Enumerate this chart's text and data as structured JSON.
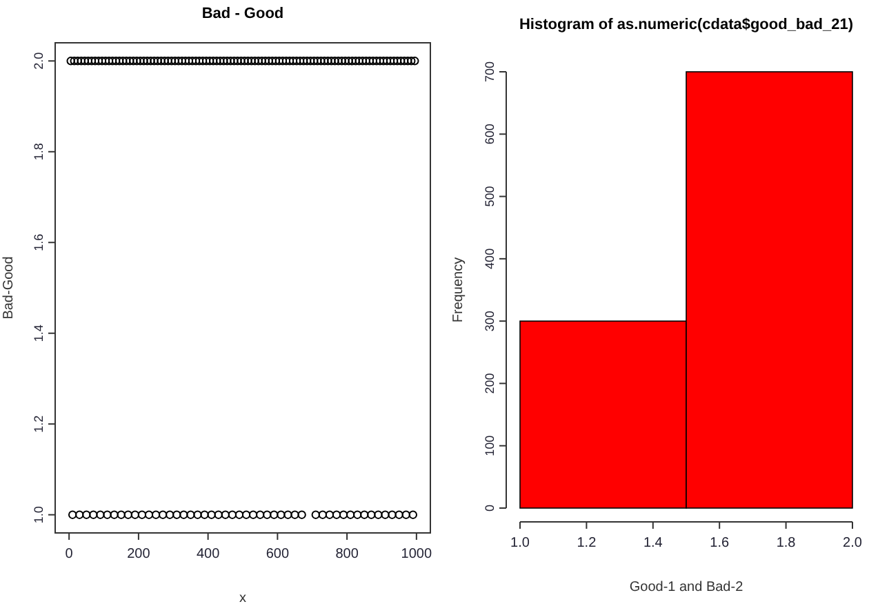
{
  "chart_data": [
    {
      "type": "scatter",
      "title": "Bad - Good",
      "xlabel": "x",
      "ylabel": "Bad-Good",
      "xlim": [
        -40,
        1040
      ],
      "ylim": [
        0.96,
        2.04
      ],
      "xticks": [
        0,
        200,
        400,
        600,
        800,
        1000
      ],
      "yticks": [
        {
          "value": 1,
          "label": "1.0"
        },
        1.2,
        1.4,
        1.6,
        1.8,
        {
          "value": 2,
          "label": "2.0"
        }
      ],
      "marker": "circle",
      "grid": false,
      "series": [
        {
          "color": "#000000",
          "x": [
            5,
            15,
            25,
            35,
            45,
            55,
            65,
            75,
            85,
            95,
            105,
            115,
            125,
            135,
            145,
            155,
            165,
            175,
            185,
            195,
            205,
            215,
            225,
            235,
            245,
            255,
            265,
            275,
            285,
            295,
            305,
            315,
            325,
            335,
            345,
            355,
            365,
            375,
            385,
            395,
            405,
            415,
            425,
            435,
            445,
            455,
            465,
            475,
            485,
            495,
            505,
            515,
            525,
            535,
            545,
            555,
            565,
            575,
            585,
            595,
            605,
            615,
            625,
            635,
            645,
            655,
            665,
            675,
            685,
            695,
            705,
            715,
            725,
            735,
            745,
            755,
            765,
            775,
            785,
            795,
            805,
            815,
            825,
            835,
            845,
            855,
            865,
            875,
            885,
            895,
            905,
            915,
            925,
            935,
            945,
            955,
            965,
            975,
            985,
            995,
            10,
            30,
            50,
            70,
            90,
            110,
            130,
            150,
            170,
            190,
            210,
            230,
            250,
            270,
            290,
            310,
            330,
            350,
            370,
            390,
            410,
            430,
            450,
            470,
            490,
            510,
            530,
            550,
            570,
            590,
            610,
            630,
            650,
            670,
            710,
            730,
            750,
            770,
            790,
            810,
            830,
            850,
            870,
            890,
            910,
            930,
            950,
            970,
            990
          ],
          "values": [
            2,
            2,
            2,
            2,
            2,
            2,
            2,
            2,
            2,
            2,
            2,
            2,
            2,
            2,
            2,
            2,
            2,
            2,
            2,
            2,
            2,
            2,
            2,
            2,
            2,
            2,
            2,
            2,
            2,
            2,
            2,
            2,
            2,
            2,
            2,
            2,
            2,
            2,
            2,
            2,
            2,
            2,
            2,
            2,
            2,
            2,
            2,
            2,
            2,
            2,
            2,
            2,
            2,
            2,
            2,
            2,
            2,
            2,
            2,
            2,
            2,
            2,
            2,
            2,
            2,
            2,
            2,
            2,
            2,
            2,
            2,
            2,
            2,
            2,
            2,
            2,
            2,
            2,
            2,
            2,
            2,
            2,
            2,
            2,
            2,
            2,
            2,
            2,
            2,
            2,
            2,
            2,
            2,
            2,
            2,
            2,
            2,
            2,
            2,
            2,
            1,
            1,
            1,
            1,
            1,
            1,
            1,
            1,
            1,
            1,
            1,
            1,
            1,
            1,
            1,
            1,
            1,
            1,
            1,
            1,
            1,
            1,
            1,
            1,
            1,
            1,
            1,
            1,
            1,
            1,
            1,
            1,
            1,
            1,
            1,
            1,
            1,
            1,
            1,
            1,
            1,
            1,
            1,
            1,
            1,
            1,
            1,
            1,
            1
          ]
        }
      ]
    },
    {
      "type": "histogram",
      "title": "Histogram of as.numeric(cdata$good_bad_21)",
      "xlabel": "Good-1 and Bad-2",
      "ylabel": "Frequency",
      "bins": [
        1,
        1.5,
        2
      ],
      "values": [
        300,
        700
      ],
      "color": "#ff0000",
      "xlim": [
        1,
        2
      ],
      "ylim": [
        0,
        700
      ],
      "xticks": [
        {
          "value": 1,
          "label": "1.0"
        },
        1.2,
        1.4,
        1.6,
        1.8,
        {
          "value": 2,
          "label": "2.0"
        }
      ],
      "yticks": [
        0,
        100,
        200,
        300,
        400,
        500,
        600,
        700
      ],
      "grid": false
    }
  ]
}
